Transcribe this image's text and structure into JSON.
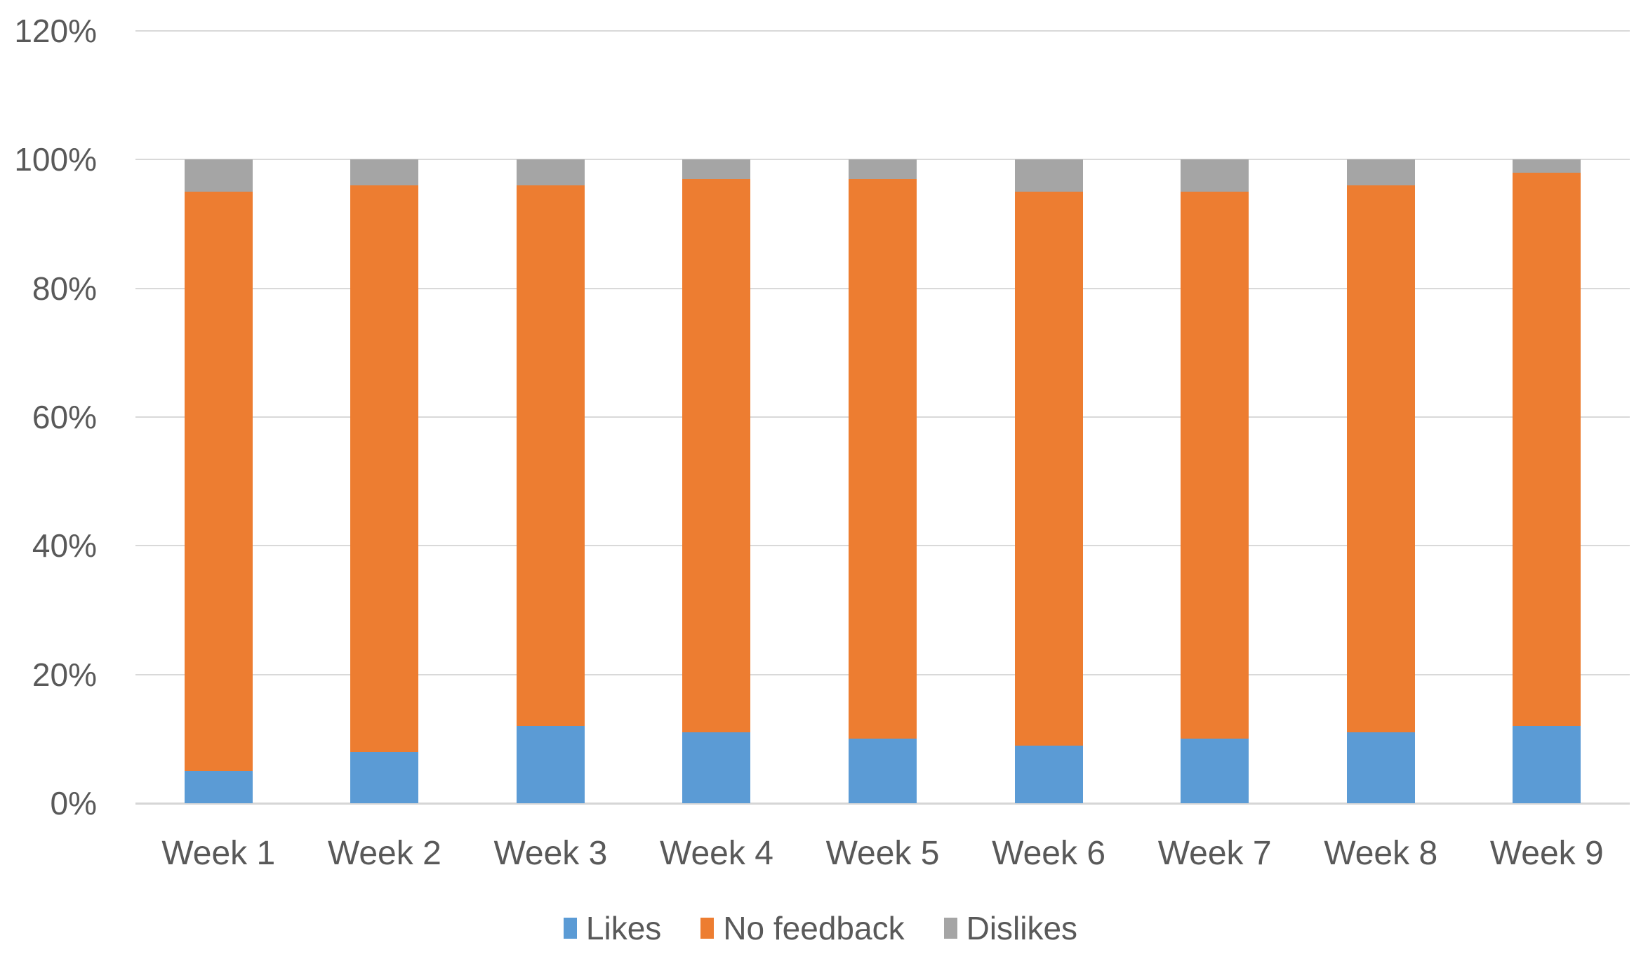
{
  "chart_data": {
    "type": "bar",
    "variant": "stacked-100-percent-column",
    "title": "",
    "xlabel": "",
    "ylabel": "",
    "categories": [
      "Week 1",
      "Week 2",
      "Week 3",
      "Week 4",
      "Week 5",
      "Week 6",
      "Week 7",
      "Week 8",
      "Week 9"
    ],
    "series": [
      {
        "name": "Likes",
        "color": "#5B9BD5",
        "values": [
          5,
          8,
          12,
          11,
          10,
          9,
          10,
          11,
          12
        ]
      },
      {
        "name": "No feedback",
        "color": "#ED7D31",
        "values": [
          90,
          88,
          84,
          86,
          87,
          86,
          85,
          85,
          86
        ]
      },
      {
        "name": "Dislikes",
        "color": "#A5A5A5",
        "values": [
          5,
          4,
          4,
          3,
          3,
          5,
          5,
          4,
          2
        ]
      }
    ],
    "y_ticks": [
      {
        "label": "0%",
        "value": 0
      },
      {
        "label": "20%",
        "value": 20
      },
      {
        "label": "40%",
        "value": 40
      },
      {
        "label": "60%",
        "value": 60
      },
      {
        "label": "80%",
        "value": 80
      },
      {
        "label": "100%",
        "value": 100
      },
      {
        "label": "120%",
        "value": 120
      }
    ],
    "ylim": [
      0,
      120
    ],
    "grid": true,
    "legend_position": "bottom"
  },
  "styles": {
    "background": "#FFFFFF",
    "text_color": "#595959",
    "gridline_color": "#D9D9D9",
    "axis_line_color": "#D6D6D6"
  }
}
